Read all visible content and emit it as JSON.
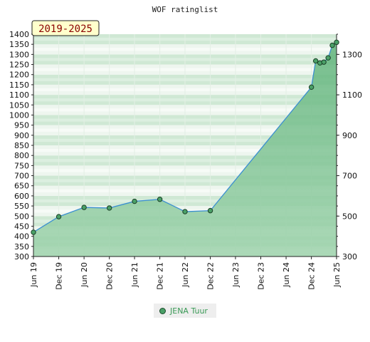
{
  "chart_data": {
    "type": "area",
    "title": "WOF ratinglist",
    "badge": "2019-2025",
    "x_tick_labels": [
      "Jun 19",
      "Dec 19",
      "Jun 20",
      "Dec 20",
      "Jun 21",
      "Dec 21",
      "Jun 22",
      "Dec 22",
      "Jun 23",
      "Dec 23",
      "Jun 24",
      "Dec 24",
      "Jun 25"
    ],
    "x_tick_dates": [
      "2019-06",
      "2019-12",
      "2020-06",
      "2020-12",
      "2021-06",
      "2021-12",
      "2022-06",
      "2022-12",
      "2023-06",
      "2023-12",
      "2024-06",
      "2024-12",
      "2025-06"
    ],
    "ylim": [
      300,
      1400
    ],
    "left_y_ticks": [
      300,
      350,
      400,
      450,
      500,
      550,
      600,
      650,
      700,
      750,
      800,
      850,
      900,
      950,
      1000,
      1050,
      1100,
      1150,
      1200,
      1250,
      1300,
      1350,
      1400
    ],
    "right_y_ticks": [
      300,
      500,
      700,
      900,
      1100,
      1300
    ],
    "grid": true,
    "legend_position": "bottom-center",
    "series": [
      {
        "name": "JENA Tuur",
        "color": "#4aa067",
        "points": [
          {
            "x": "2019-06",
            "y": 420
          },
          {
            "x": "2019-12",
            "y": 497
          },
          {
            "x": "2020-06",
            "y": 543
          },
          {
            "x": "2020-12",
            "y": 540
          },
          {
            "x": "2021-06",
            "y": 573
          },
          {
            "x": "2021-12",
            "y": 583
          },
          {
            "x": "2022-06",
            "y": 522
          },
          {
            "x": "2022-12",
            "y": 527
          },
          {
            "x": "2024-12",
            "y": 1138
          },
          {
            "x": "2025-01",
            "y": 1268
          },
          {
            "x": "2025-02",
            "y": 1258
          },
          {
            "x": "2025-03",
            "y": 1262
          },
          {
            "x": "2025-04",
            "y": 1283
          },
          {
            "x": "2025-05",
            "y": 1345
          },
          {
            "x": "2025-06",
            "y": 1360
          }
        ]
      }
    ]
  }
}
